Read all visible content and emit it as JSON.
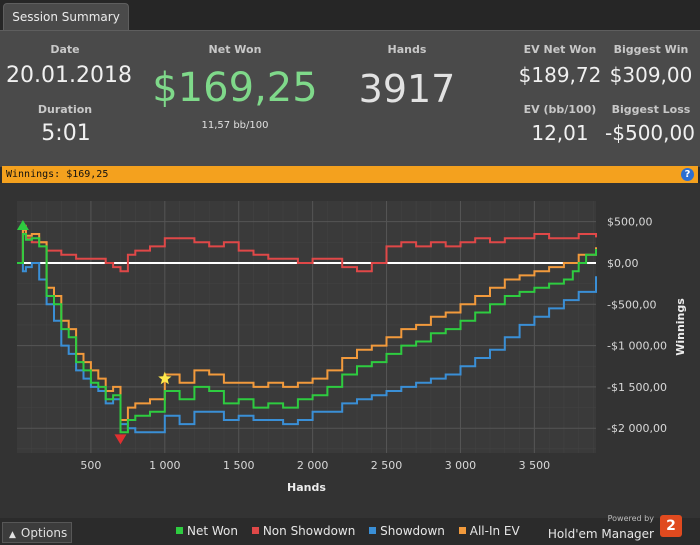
{
  "tab": {
    "label": "Session Summary"
  },
  "summary": {
    "date_label": "Date",
    "date_value": "20.01.2018",
    "duration_label": "Duration",
    "duration_value": "5:01",
    "netwon_label": "Net Won",
    "netwon_value": "$169,25",
    "bb100": "11,57 bb/100",
    "hands_label": "Hands",
    "hands_value": "3917",
    "evnet_label": "EV Net Won",
    "evnet_value": "$189,72",
    "evbb_label": "EV (bb/100)",
    "evbb_value": "12,01",
    "bigwin_label": "Biggest Win",
    "bigwin_value": "$309,00",
    "bigloss_label": "Biggest Loss",
    "bigloss_value": "-$500,00"
  },
  "winnings_bar": {
    "text": "Winnings: $169,25",
    "help": "?"
  },
  "chart_data": {
    "type": "line",
    "xlabel": "Hands",
    "ylabel": "Winnings",
    "xlim": [
      0,
      3917
    ],
    "ylim": [
      -2300,
      750
    ],
    "x_ticks": [
      500,
      1000,
      1500,
      2000,
      2500,
      3000,
      3500
    ],
    "x_tick_labels": [
      "500",
      "1 000",
      "1 500",
      "2 000",
      "2 500",
      "3 000",
      "3 500"
    ],
    "y_ticks": [
      500,
      0,
      -500,
      -1000,
      -1500,
      -2000
    ],
    "y_tick_labels": [
      "$500,00",
      "$0,00",
      "-$500,00",
      "-$1 000,00",
      "-$1 500,00",
      "-$2 000,00"
    ],
    "grid": true,
    "legend_position": "bottom",
    "series": [
      {
        "name": "Net Won",
        "color": "#2ecc40",
        "x": [
          0,
          40,
          60,
          100,
          150,
          200,
          250,
          300,
          350,
          400,
          450,
          500,
          550,
          600,
          650,
          700,
          750,
          800,
          900,
          1000,
          1100,
          1200,
          1300,
          1400,
          1500,
          1600,
          1700,
          1800,
          1900,
          2000,
          2100,
          2200,
          2300,
          2400,
          2500,
          2600,
          2700,
          2800,
          2900,
          3000,
          3100,
          3200,
          3300,
          3400,
          3500,
          3600,
          3700,
          3760,
          3800,
          3850,
          3917
        ],
        "y": [
          0,
          350,
          280,
          300,
          200,
          -400,
          -500,
          -800,
          -900,
          -1200,
          -1300,
          -1450,
          -1500,
          -1650,
          -1600,
          -2050,
          -1900,
          -1850,
          -1800,
          -1550,
          -1650,
          -1500,
          -1550,
          -1700,
          -1650,
          -1750,
          -1700,
          -1750,
          -1650,
          -1600,
          -1500,
          -1350,
          -1250,
          -1200,
          -1100,
          -1000,
          -950,
          -850,
          -800,
          -700,
          -600,
          -500,
          -400,
          -350,
          -300,
          -250,
          -200,
          -100,
          0,
          100,
          169
        ]
      },
      {
        "name": "Non Showdown",
        "color": "#e04848",
        "x": [
          0,
          40,
          60,
          100,
          200,
          300,
          400,
          500,
          600,
          650,
          700,
          750,
          800,
          900,
          1000,
          1100,
          1200,
          1300,
          1400,
          1500,
          1600,
          1700,
          1800,
          1900,
          2000,
          2100,
          2200,
          2300,
          2400,
          2500,
          2600,
          2700,
          2800,
          2900,
          3000,
          3100,
          3200,
          3300,
          3400,
          3500,
          3600,
          3700,
          3800,
          3917
        ],
        "y": [
          0,
          450,
          300,
          250,
          150,
          100,
          50,
          50,
          0,
          -50,
          -100,
          100,
          150,
          200,
          300,
          300,
          250,
          200,
          250,
          150,
          100,
          50,
          50,
          0,
          50,
          50,
          -50,
          -100,
          0,
          200,
          250,
          200,
          250,
          200,
          250,
          300,
          250,
          300,
          300,
          350,
          300,
          300,
          350,
          309
        ]
      },
      {
        "name": "Showdown",
        "color": "#3a8fd6",
        "x": [
          0,
          40,
          60,
          100,
          150,
          200,
          250,
          300,
          350,
          400,
          450,
          500,
          550,
          600,
          650,
          700,
          750,
          800,
          900,
          1000,
          1100,
          1200,
          1300,
          1400,
          1500,
          1600,
          1700,
          1800,
          1900,
          2000,
          2100,
          2200,
          2300,
          2400,
          2500,
          2600,
          2700,
          2800,
          2900,
          3000,
          3100,
          3200,
          3300,
          3400,
          3500,
          3600,
          3700,
          3800,
          3917
        ],
        "y": [
          0,
          -100,
          -50,
          0,
          -200,
          -500,
          -700,
          -1000,
          -1100,
          -1300,
          -1400,
          -1500,
          -1550,
          -1700,
          -1650,
          -1950,
          -2000,
          -2050,
          -2050,
          -1850,
          -1950,
          -1800,
          -1800,
          -1900,
          -1850,
          -1900,
          -1900,
          -1950,
          -1900,
          -1800,
          -1800,
          -1700,
          -1650,
          -1600,
          -1550,
          -1500,
          -1450,
          -1400,
          -1350,
          -1250,
          -1150,
          -1050,
          -900,
          -750,
          -650,
          -550,
          -450,
          -350,
          -160
        ]
      },
      {
        "name": "All-In EV",
        "color": "#f29a3c",
        "x": [
          0,
          40,
          60,
          100,
          150,
          200,
          250,
          300,
          350,
          400,
          450,
          500,
          550,
          600,
          650,
          700,
          750,
          800,
          900,
          1000,
          1100,
          1200,
          1300,
          1400,
          1500,
          1600,
          1700,
          1800,
          1900,
          2000,
          2100,
          2200,
          2300,
          2400,
          2500,
          2600,
          2700,
          2800,
          2900,
          3000,
          3100,
          3200,
          3300,
          3400,
          3500,
          3600,
          3700,
          3800,
          3917
        ],
        "y": [
          0,
          400,
          330,
          350,
          250,
          -300,
          -400,
          -700,
          -800,
          -1100,
          -1200,
          -1300,
          -1400,
          -1550,
          -1500,
          -1900,
          -1750,
          -1700,
          -1650,
          -1350,
          -1450,
          -1300,
          -1350,
          -1450,
          -1450,
          -1500,
          -1450,
          -1500,
          -1450,
          -1400,
          -1300,
          -1150,
          -1050,
          -1000,
          -900,
          -800,
          -750,
          -650,
          -600,
          -500,
          -400,
          -300,
          -200,
          -150,
          -100,
          -50,
          0,
          100,
          190
        ]
      }
    ],
    "markers": [
      {
        "type": "triangle-up",
        "color": "#2ecc40",
        "x": 40,
        "y": 350
      },
      {
        "type": "triangle-down",
        "color": "#e03030",
        "x": 700,
        "y": -2050
      },
      {
        "type": "star",
        "color": "#ffe84a",
        "x": 1000,
        "y": -1400
      }
    ]
  },
  "footer": {
    "options_label": "Options",
    "legend": [
      {
        "label": "Net Won",
        "color": "#2ecc40"
      },
      {
        "label": "Non Showdown",
        "color": "#e04848"
      },
      {
        "label": "Showdown",
        "color": "#3a8fd6"
      },
      {
        "label": "All-In EV",
        "color": "#f29a3c"
      }
    ],
    "powered_by": "Powered by",
    "brand": "Hold'em Manager",
    "brand_version": "2"
  }
}
